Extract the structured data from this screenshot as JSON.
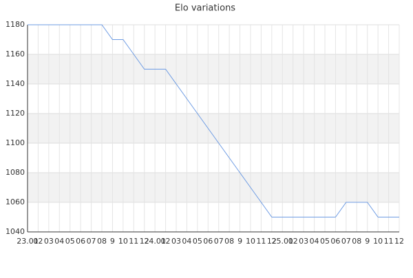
{
  "chart_data": {
    "type": "line",
    "title": "Elo variations",
    "categories": [
      "23.01",
      "02",
      "03",
      "04",
      "05",
      "06",
      "07",
      "08",
      "9",
      "10",
      "11",
      "12",
      "24.01",
      "02",
      "03",
      "04",
      "05",
      "06",
      "07",
      "08",
      "9",
      "10",
      "11",
      "12",
      "25.01",
      "02",
      "03",
      "04",
      "05",
      "06",
      "07",
      "08",
      "9",
      "10",
      "11",
      "12"
    ],
    "series": [
      {
        "color": "#6d9be3",
        "values": [
          1180,
          1180,
          1180,
          1180,
          1180,
          1180,
          1180,
          1180,
          1170,
          1170,
          1160,
          1150,
          1150,
          1150,
          1140,
          1130,
          1120,
          1110,
          1100,
          1090,
          1080,
          1070,
          1060,
          1050,
          1050,
          1050,
          1050,
          1050,
          1050,
          1050,
          1060,
          1060,
          1060,
          1050,
          1050,
          1050
        ]
      }
    ],
    "ylim": [
      1040,
      1180
    ],
    "yticks": [
      1040,
      1060,
      1080,
      1100,
      1120,
      1140,
      1160,
      1180
    ],
    "grid": true
  }
}
